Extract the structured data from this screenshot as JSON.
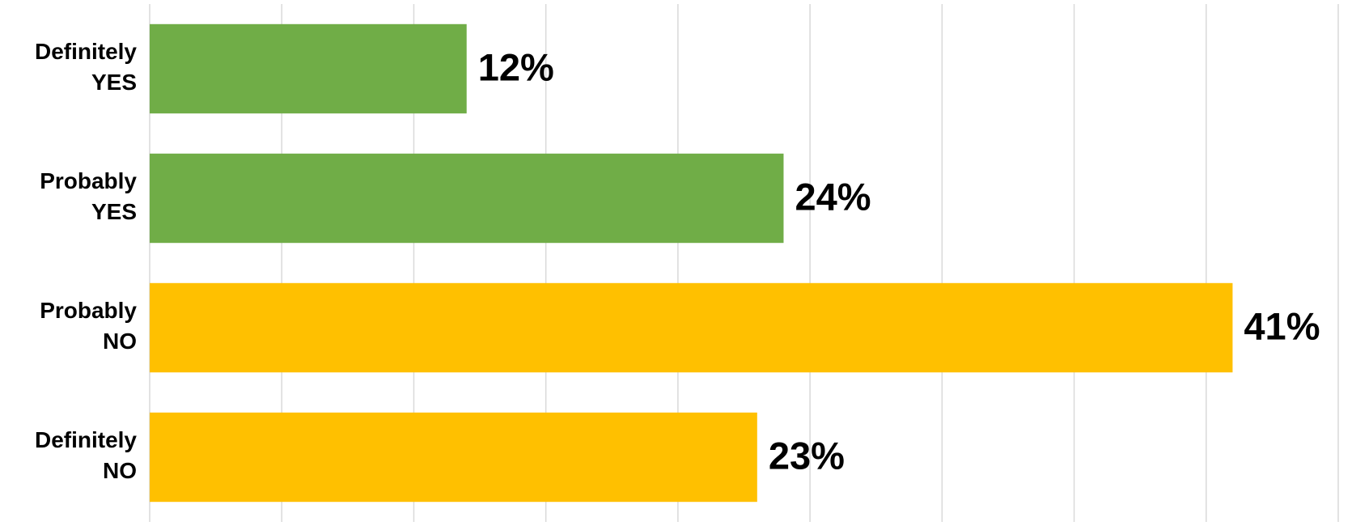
{
  "chart_data": {
    "type": "bar",
    "orientation": "horizontal",
    "categories": [
      [
        "Definitely",
        "YES"
      ],
      [
        "Probably",
        "YES"
      ],
      [
        "Probably",
        "NO"
      ],
      [
        "Definitely",
        "NO"
      ]
    ],
    "values": [
      12,
      24,
      41,
      23
    ],
    "value_labels": [
      "12%",
      "24%",
      "41%",
      "23%"
    ],
    "colors": [
      "#70ad47",
      "#70ad47",
      "#ffc000",
      "#ffc000"
    ],
    "xlim": [
      0,
      45
    ],
    "xticks": [
      0,
      5,
      10,
      15,
      20,
      25,
      30,
      35,
      40,
      45
    ],
    "grid": true
  }
}
